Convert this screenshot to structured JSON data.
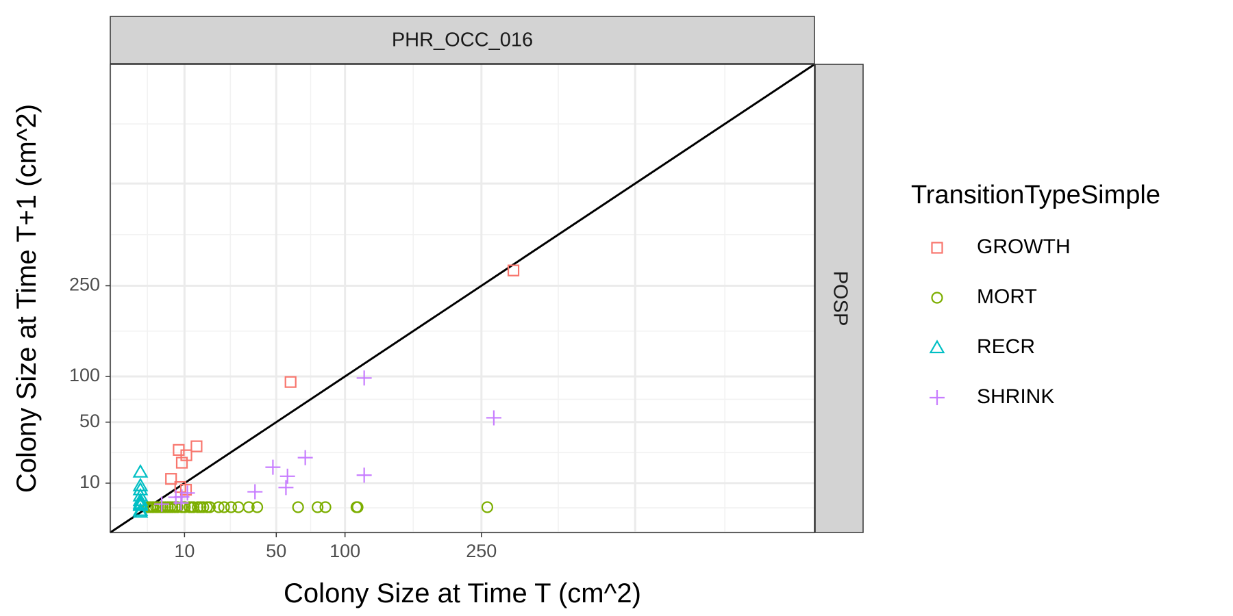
{
  "chart_data": {
    "type": "scatter",
    "facet_top": "PHR_OCC_016",
    "facet_right": "POSP",
    "xlabel": "Colony Size at Time T (cm^2)",
    "ylabel": "Colony Size at Time T+1 (cm^2)",
    "scale": "sqrt",
    "xlim": [
      0,
      900
    ],
    "ylim": [
      0,
      900
    ],
    "x_ticks": [
      10,
      50,
      100,
      250
    ],
    "y_ticks": [
      10,
      50,
      100,
      250
    ],
    "reference_line": "y = x",
    "grid": true,
    "legend": {
      "title": "TransitionTypeSimple",
      "position": "right"
    },
    "series": [
      {
        "name": "GROWTH",
        "color": "#F8766D",
        "shape": "square",
        "points": [
          [
            295,
            282
          ],
          [
            59,
            93
          ],
          [
            13.5,
            30.5
          ],
          [
            8.5,
            28
          ],
          [
            9.3,
            20
          ],
          [
            10.5,
            24.5
          ],
          [
            6.7,
            11.8
          ],
          [
            8.9,
            8.5
          ],
          [
            10.4,
            7.5
          ]
        ]
      },
      {
        "name": "MORT",
        "color": "#7CAE00",
        "shape": "circle",
        "points": [
          [
            2.6,
            0
          ],
          [
            2.9,
            0
          ],
          [
            3.2,
            0
          ],
          [
            3.4,
            0
          ],
          [
            3.8,
            0
          ],
          [
            4.1,
            0
          ],
          [
            4.6,
            0
          ],
          [
            5.0,
            0
          ],
          [
            5.5,
            0
          ],
          [
            6.0,
            0
          ],
          [
            6.5,
            0
          ],
          [
            7.0,
            0
          ],
          [
            7.6,
            0
          ],
          [
            8.2,
            0
          ],
          [
            9.3,
            0
          ],
          [
            10.1,
            0
          ],
          [
            11.4,
            0
          ],
          [
            12.0,
            0
          ],
          [
            12.6,
            0
          ],
          [
            13.9,
            0
          ],
          [
            14.8,
            0
          ],
          [
            15.7,
            0
          ],
          [
            17.0,
            0
          ],
          [
            18.0,
            0
          ],
          [
            21.3,
            0
          ],
          [
            23.5,
            0
          ],
          [
            26.5,
            0
          ],
          [
            29.8,
            0
          ],
          [
            34.8,
            0
          ],
          [
            39.2,
            0
          ],
          [
            64,
            0
          ],
          [
            78,
            0
          ],
          [
            84,
            0
          ],
          [
            110,
            0
          ],
          [
            111,
            0
          ],
          [
            258,
            0
          ]
        ]
      },
      {
        "name": "RECR",
        "color": "#00BFC4",
        "shape": "triangle",
        "points": [
          [
            0,
            15
          ],
          [
            0,
            9
          ],
          [
            0,
            7.5
          ],
          [
            0,
            5.5
          ],
          [
            0,
            4.2
          ],
          [
            0,
            3.5
          ],
          [
            0,
            3.2
          ],
          [
            0,
            3.0
          ],
          [
            0,
            2.0
          ],
          [
            0,
            1.7
          ]
        ]
      },
      {
        "name": "SHRINK",
        "color": "#C77CFF",
        "shape": "cross",
        "points": [
          [
            117,
            98
          ],
          [
            267,
            54
          ],
          [
            69,
            23
          ],
          [
            48,
            17.5
          ],
          [
            57,
            13
          ],
          [
            117,
            13.5
          ],
          [
            56,
            8.3
          ],
          [
            38,
            6.8
          ],
          [
            10.8,
            6.4
          ],
          [
            9.3,
            5.2
          ],
          [
            7.8,
            5.1
          ],
          [
            4.8,
            3.3
          ],
          [
            9.1,
            3.6
          ]
        ]
      }
    ]
  }
}
